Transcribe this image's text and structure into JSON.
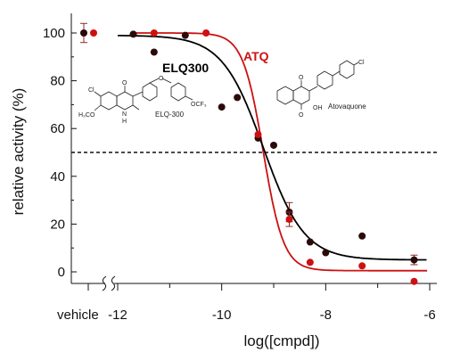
{
  "chart_data": {
    "type": "scatter",
    "xlabel": "log([cmpd])",
    "ylabel": "relative activity (%)",
    "xlim": [
      -13.0,
      -5.8
    ],
    "ylim": [
      -7,
      110
    ],
    "x_ticks": [
      -12,
      -10,
      -8,
      -6
    ],
    "x_tick_labels": [
      "-12",
      "-10",
      "-8",
      "-6"
    ],
    "y_ticks": [
      0,
      20,
      40,
      60,
      80,
      100
    ],
    "y_tick_labels": [
      "0",
      "20",
      "40",
      "60",
      "80",
      "100"
    ],
    "vehicle_label": "vehicle",
    "axis_break": true,
    "threshold_line": {
      "y": 50,
      "style": "dashed"
    },
    "series": [
      {
        "name": "ELQ300",
        "color": "#000000",
        "marker_color": "#2b0a0a",
        "points": [
          {
            "x": -11.7,
            "y": 99.5
          },
          {
            "x": -11.3,
            "y": 92
          },
          {
            "x": -10.7,
            "y": 99
          },
          {
            "x": -10.0,
            "y": 69
          },
          {
            "x": -9.7,
            "y": 73
          },
          {
            "x": -9.3,
            "y": 56
          },
          {
            "x": -9.0,
            "y": 53
          },
          {
            "x": -8.7,
            "y": 25,
            "err": 4
          },
          {
            "x": -8.3,
            "y": 12.5
          },
          {
            "x": -8.0,
            "y": 8
          },
          {
            "x": -7.3,
            "y": 15
          },
          {
            "x": -6.3,
            "y": 5,
            "err": 2
          }
        ],
        "vehicle_point": {
          "y": 100,
          "err": 4
        },
        "fit": {
          "top": 99,
          "bottom": 5,
          "log_ic50": -9.2,
          "hill": 1.1,
          "x_start": -12
        }
      },
      {
        "name": "ATQ",
        "color": "#cc1111",
        "marker_color": "#cc1111",
        "points": [
          {
            "x": -11.3,
            "y": 100
          },
          {
            "x": -10.3,
            "y": 100
          },
          {
            "x": -9.3,
            "y": 57.5
          },
          {
            "x": -8.7,
            "y": 22,
            "err": 3
          },
          {
            "x": -8.3,
            "y": 4
          },
          {
            "x": -7.3,
            "y": 2.5
          },
          {
            "x": -6.3,
            "y": -4
          }
        ],
        "vehicle_point": {
          "y": 100
        },
        "fit": {
          "top": 100,
          "bottom": 0.5,
          "log_ic50": -9.2,
          "hill": 2.2,
          "x_start": -11.65
        }
      }
    ],
    "structures": {
      "elq300_name": "ELQ-300",
      "atq_name": "Atovaquone",
      "atoms": {
        "cl": "Cl",
        "o": "O",
        "h3co": "H₃CO",
        "n": "N",
        "h": "H",
        "ocf3": "OCF₃",
        "oh": "OH"
      }
    }
  }
}
